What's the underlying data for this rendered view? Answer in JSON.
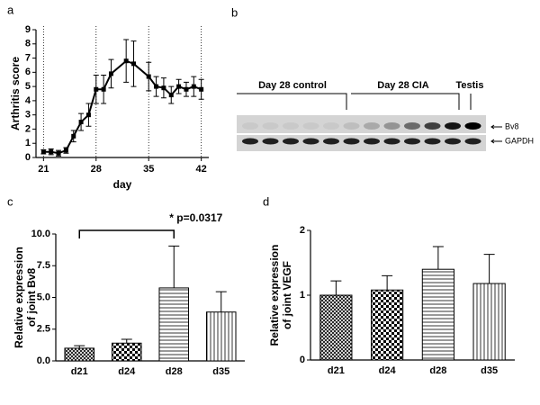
{
  "chart_data": [
    {
      "type": "line",
      "panel": "a",
      "y_label": [
        "Arthritis score"
      ],
      "x_label": "day",
      "x": [
        21,
        22,
        23,
        24,
        25,
        26,
        27,
        28,
        29,
        30,
        32,
        33,
        35,
        36,
        37,
        38,
        39,
        40,
        41,
        42
      ],
      "values": [
        0.4,
        0.4,
        0.3,
        0.5,
        1.5,
        2.5,
        3.0,
        4.8,
        4.8,
        5.9,
        6.8,
        6.6,
        5.7,
        5.0,
        4.9,
        4.4,
        5.0,
        4.8,
        5.0,
        4.8
      ],
      "errors": [
        0.15,
        0.2,
        0.2,
        0.2,
        0.4,
        0.6,
        0.8,
        1.0,
        1.0,
        1.0,
        1.5,
        1.6,
        1.0,
        0.7,
        0.7,
        0.6,
        0.5,
        0.5,
        0.7,
        0.7
      ],
      "color": "#000000",
      "xlim": [
        20,
        43
      ],
      "ylim": [
        0,
        9
      ],
      "xticks": [
        21,
        28,
        35,
        42
      ],
      "yticks": [
        0,
        1,
        2,
        3,
        4,
        5,
        6,
        7,
        8,
        9
      ],
      "x_grid": true
    },
    {
      "type": "bar",
      "panel": "c",
      "y_label": [
        "Relative expression",
        "of joint Bv8"
      ],
      "categories": [
        "d21",
        "d24",
        "d28",
        "d35"
      ],
      "values": [
        1.0,
        1.4,
        5.75,
        3.85
      ],
      "errors": [
        0.2,
        0.3,
        3.3,
        1.6
      ],
      "patterns": [
        "crosshatch",
        "checker",
        "horizontal",
        "vertical"
      ],
      "ylim": [
        0,
        10
      ],
      "yticks": [
        {
          "value": 0,
          "label": "0.0"
        },
        {
          "value": 2.5,
          "label": "2.5"
        },
        {
          "value": 5,
          "label": "5.0"
        },
        {
          "value": 7.5,
          "label": "7.5"
        },
        {
          "value": 10,
          "label": "10.0"
        }
      ],
      "annotation": "* p=0.0317"
    },
    {
      "type": "bar",
      "panel": "d",
      "y_label": [
        "Relative expression",
        "of joint VEGF"
      ],
      "categories": [
        "d21",
        "d24",
        "d28",
        "d35"
      ],
      "values": [
        1.0,
        1.08,
        1.4,
        1.18
      ],
      "errors": [
        0.22,
        0.22,
        0.35,
        0.45
      ],
      "patterns": [
        "crosshatch",
        "checker",
        "horizontal",
        "vertical"
      ],
      "ylim": [
        0,
        2
      ],
      "yticks": [
        0,
        1,
        2
      ]
    }
  ],
  "blot": {
    "panel": "b",
    "groups": [
      "Day 28 control",
      "Day 28 CIA",
      "Testis"
    ],
    "bands": [
      "Bv8",
      "GAPDH"
    ]
  }
}
